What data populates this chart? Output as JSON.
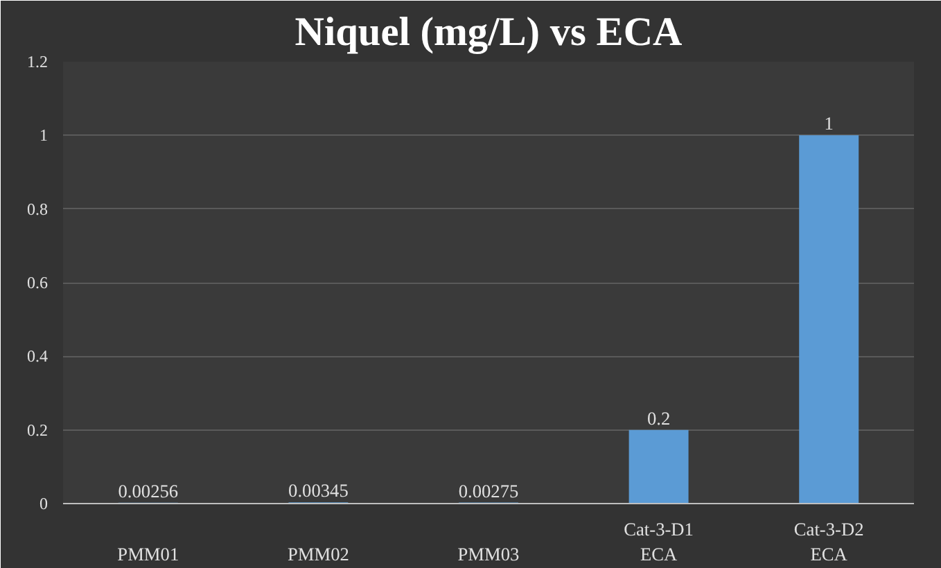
{
  "chart_data": {
    "type": "bar",
    "title": "Niquel (mg/L) vs ECA",
    "categories": [
      "PMM01",
      "PMM02",
      "PMM03",
      "Cat-3-D1\nECA",
      "Cat-3-D2\nECA"
    ],
    "values": [
      0.00256,
      0.00345,
      0.00275,
      0.2,
      1
    ],
    "color": "#5b9bd5",
    "ylim": [
      0,
      1.2
    ],
    "yticks": [
      0,
      0.2,
      0.4,
      0.6,
      0.8,
      1,
      1.2
    ],
    "grid": "y",
    "data_labels": true
  }
}
